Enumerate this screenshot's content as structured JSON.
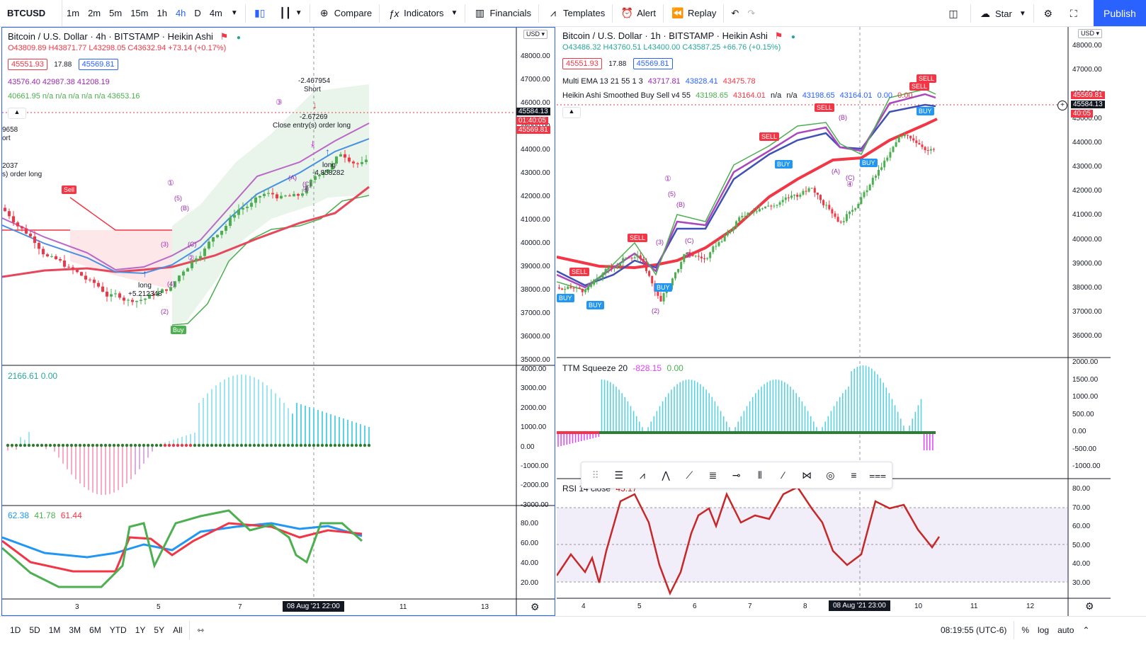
{
  "toolbar": {
    "symbol": "BTCUSD",
    "intervals": [
      "1m",
      "2m",
      "5m",
      "15m",
      "1h",
      "4h",
      "D",
      "4m"
    ],
    "active_interval": "4h",
    "compare_label": "Compare",
    "indicators_label": "Indicators",
    "financials_label": "Financials",
    "templates_label": "Templates",
    "alert_label": "Alert",
    "replay_label": "Replay",
    "star_label": "Star",
    "publish_label": "Publish"
  },
  "left_chart": {
    "title": "Bitcoin / U.S. Dollar · 4h · BITSTAMP · Heikin Ashi",
    "ohlc": "O43809.89 H43871.77 L43298.05 C43632.94 +73.14 (+0.17%)",
    "bid": "45551.93",
    "spread": "17.88",
    "ask": "45569.81",
    "ind1": "43576.40 42987.38 41208.19",
    "ind2": "40661.95 n/a n/a n/a n/a n/a 43653.16",
    "currency": "USD",
    "price_ticks": [
      "48000.00",
      "47000.00",
      "46000.00",
      "45000.00",
      "44000.00",
      "43000.00",
      "42000.00",
      "41000.00",
      "40000.00",
      "39000.00",
      "38000.00",
      "37000.00",
      "36000.00",
      "35000.00"
    ],
    "last_price": "45584.13",
    "countdown": "01:40:05",
    "ask_tag": "45569.81",
    "annotations": {
      "short_val": "-2.467954",
      "short_label": "Short",
      "close_val": "-2.67269",
      "close_label": "Close entry(s) order long",
      "long_val": "long",
      "long_num": "-4.858282",
      "long2_label": "long",
      "long2_num": "+5.212348",
      "sell": "Sell",
      "buy": "Buy",
      "edge1": "9658",
      "edge2": "ort",
      "edge3": "2037",
      "edge4": "s) order long"
    },
    "wave_labels": [
      "①",
      "(5)",
      "(B)",
      "(3)",
      "(4)",
      "(C)",
      "②",
      "(2)",
      "(A)",
      "(C)",
      "④",
      "③"
    ],
    "osc1": {
      "values": "2166.61  0.00",
      "ticks": [
        "4000.00",
        "3000.00",
        "2000.00",
        "1000.00",
        "0.00",
        "-1000.00",
        "-2000.00",
        "-3000.00"
      ]
    },
    "osc2": {
      "v1": "62.38",
      "v2": "41.78",
      "v3": "61.44",
      "ticks": [
        "80.00",
        "60.00",
        "40.00",
        "20.00"
      ]
    },
    "x_ticks": [
      "3",
      "5",
      "7",
      "11",
      "13"
    ],
    "time_tag": "08 Aug '21   22:00"
  },
  "right_chart": {
    "title": "Bitcoin / U.S. Dollar · 1h · BITSTAMP · Heikin Ashi",
    "ohlc": "O43486.32 H43760.51 L43400.00 C43587.25 +66.76 (+0.15%)",
    "bid": "45551.93",
    "spread": "17.88",
    "ask": "45569.81",
    "ema_label": "Multi EMA 13 21 55 1 3",
    "ema_vals": [
      "43717.81",
      "43828.41",
      "43475.78"
    ],
    "ha_label": "Heikin Ashi Smoothed Buy Sell v4 55",
    "ha_vals": [
      "43198.65",
      "43164.01",
      "n/a",
      "n/a",
      "43198.65",
      "43164.01",
      "0.00",
      "0.00"
    ],
    "currency": "USD",
    "price_ticks": [
      "48000.00",
      "47000.00",
      "46000.00",
      "45000.00",
      "44000.00",
      "43000.00",
      "42000.00",
      "41000.00",
      "40000.00",
      "39000.00",
      "38000.00",
      "37000.00",
      "36000.00"
    ],
    "last_price": "45584.13",
    "ask_tag": "45569.81",
    "countdown": "40:05",
    "signals": {
      "sell": "SELL",
      "buy": "BUY"
    },
    "ttm": {
      "label": "TTM Squeeze 20",
      "v1": "-828.15",
      "v2": "0.00",
      "ticks": [
        "2000.00",
        "1500.00",
        "1000.00",
        "500.00",
        "0.00",
        "-500.00",
        "-1000.00"
      ]
    },
    "rsi": {
      "label": "RSI 14 close",
      "value": "45.17",
      "ticks": [
        "80.00",
        "70.00",
        "60.00",
        "50.00",
        "40.00",
        "30.00"
      ]
    },
    "x_ticks": [
      "4",
      "5",
      "6",
      "7",
      "8",
      "10",
      "11",
      "12"
    ],
    "time_tag": "08 Aug '21   23:00",
    "wave_labels": [
      "①",
      "(5)",
      "(B)",
      "(3)",
      "(C)",
      "②",
      "(2)",
      "(B)",
      "(A)",
      "(C)",
      "④"
    ]
  },
  "bottombar": {
    "ranges": [
      "1D",
      "5D",
      "1M",
      "3M",
      "6M",
      "YTD",
      "1Y",
      "5Y",
      "All"
    ],
    "clock": "08:19:55 (UTC-6)",
    "percent": "%",
    "log": "log",
    "auto": "auto"
  },
  "colors": {
    "accent": "#2962ff",
    "up": "#26a69a",
    "green_candle": "#4caf50",
    "red_candle": "#f23645",
    "ema_purple": "#9c4dcc",
    "ema_blue": "#4a90e2",
    "ema_red": "#e8465a"
  }
}
